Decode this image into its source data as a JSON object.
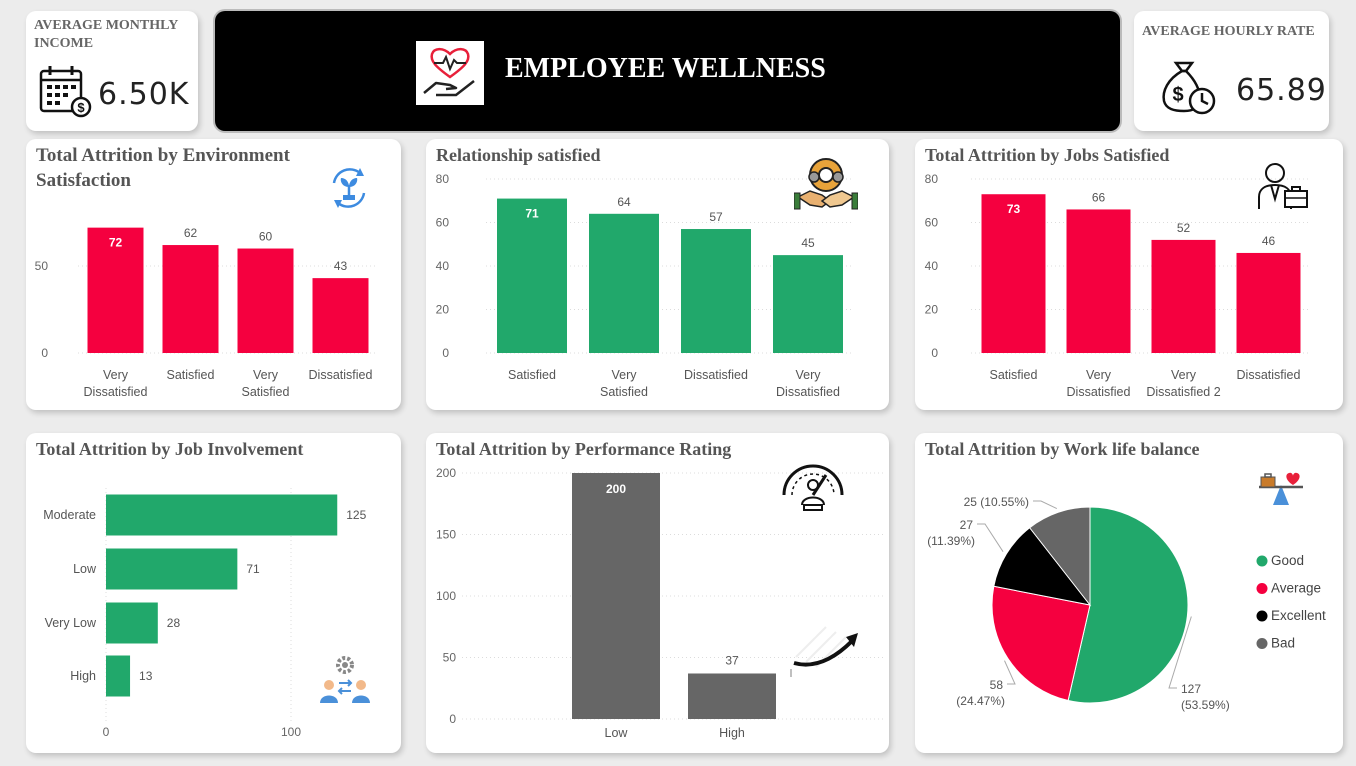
{
  "kpi_income": {
    "label": "AVERAGE MONTHLY INCOME",
    "value": "6.50K",
    "icon": "calendar-money-icon"
  },
  "banner": {
    "title": "EMPLOYEE WELLNESS",
    "icon": "heart-hand-icon"
  },
  "kpi_rate": {
    "label": "AVERAGE HOURLY RATE",
    "value": "65.89",
    "icon": "money-bag-clock-icon"
  },
  "colors": {
    "red": "#f5003f",
    "green": "#21a86b",
    "gray": "#666666",
    "black": "#000000"
  },
  "chart_data": [
    {
      "id": "env",
      "type": "bar",
      "title": "Total Attrition by Environment Satisfaction",
      "categories": [
        "Very Dissatisfied",
        "Satisfied",
        "Very Satisfied",
        "Dissatisfied"
      ],
      "values": [
        72,
        62,
        60,
        43
      ],
      "yticks": [
        0,
        50
      ],
      "ylim": [
        0,
        85
      ],
      "color": "#f5003f",
      "grid": true
    },
    {
      "id": "rel",
      "type": "bar",
      "title": "Relationship satisfied",
      "categories": [
        "Satisfied",
        "Very Satisfied",
        "Dissatisfied",
        "Very Dissatisfied"
      ],
      "values": [
        71,
        64,
        57,
        45
      ],
      "yticks": [
        0,
        20,
        40,
        60,
        80
      ],
      "ylim": [
        0,
        80
      ],
      "color": "#21a86b",
      "grid": true
    },
    {
      "id": "jobs",
      "type": "bar",
      "title": "Total Attrition by Jobs Satisfied",
      "categories": [
        "Satisfied",
        "Very Dissatisfied",
        "Very Dissatisfied 2",
        "Dissatisfied"
      ],
      "values": [
        73,
        66,
        52,
        46
      ],
      "yticks": [
        0,
        20,
        40,
        60,
        80
      ],
      "ylim": [
        0,
        80
      ],
      "color": "#f5003f",
      "grid": true
    },
    {
      "id": "inv",
      "type": "bar",
      "orientation": "horizontal",
      "title": "Total Attrition by Job Involvement",
      "categories": [
        "Moderate",
        "Low",
        "Very Low",
        "High"
      ],
      "values": [
        125,
        71,
        28,
        13
      ],
      "xticks": [
        0,
        100
      ],
      "xlim": [
        0,
        143
      ],
      "color": "#21a86b",
      "grid": true
    },
    {
      "id": "perf",
      "type": "bar",
      "title": "Total Attrition by Performance Rating",
      "categories": [
        "Low",
        "High"
      ],
      "values": [
        200,
        37
      ],
      "yticks": [
        0,
        50,
        100,
        150,
        200
      ],
      "ylim": [
        0,
        200
      ],
      "color": "#666666",
      "grid": true
    },
    {
      "id": "wlb",
      "type": "pie",
      "title": "Total Attrition by Work life balance",
      "slices": [
        {
          "name": "Good",
          "value": 127,
          "label": "127",
          "pct": "(53.59%)",
          "color": "#21a86b"
        },
        {
          "name": "Average",
          "value": 58,
          "label": "58",
          "pct": "(24.47%)",
          "color": "#f5003f"
        },
        {
          "name": "Excellent",
          "value": 27,
          "label": "27",
          "pct": "(11.39%)",
          "color": "#000000"
        },
        {
          "name": "Bad",
          "value": 25,
          "label": "25 (10.55%)",
          "pct": "",
          "color": "#666666"
        }
      ],
      "legend_position": "right"
    }
  ]
}
